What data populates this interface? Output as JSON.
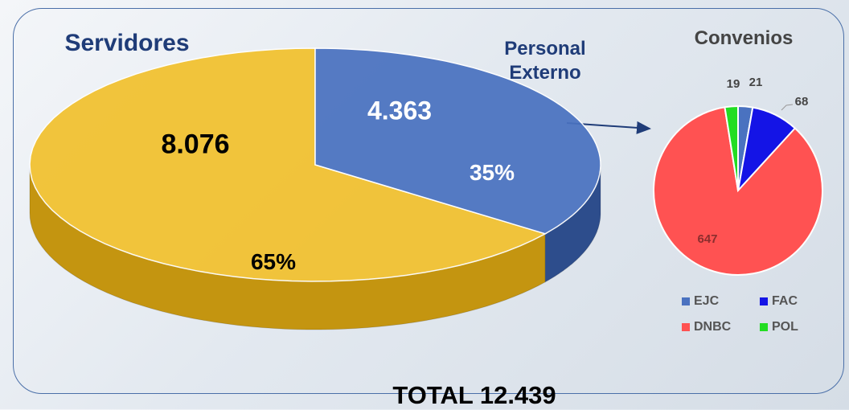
{
  "chart_data": [
    {
      "type": "pie3d",
      "categories": [
        "Servidores",
        "Personal Externo"
      ],
      "values": [
        8076,
        4363
      ],
      "value_labels": [
        "8.076",
        "4.363"
      ],
      "percentages": [
        65,
        35
      ],
      "percentage_labels": [
        "65%",
        "35%"
      ],
      "colors": [
        "#f2c12e",
        "#4a72c0"
      ],
      "annotation": "TOTAL 12.439"
    },
    {
      "type": "pie",
      "title": "Convenios",
      "categories": [
        "EJC",
        "FAC",
        "DNBC",
        "POL"
      ],
      "values": [
        21,
        68,
        647,
        19
      ],
      "colors": [
        "#4a72c0",
        "#1414e6",
        "#ff5252",
        "#22dd22"
      ],
      "legend": "bottom"
    }
  ]
}
